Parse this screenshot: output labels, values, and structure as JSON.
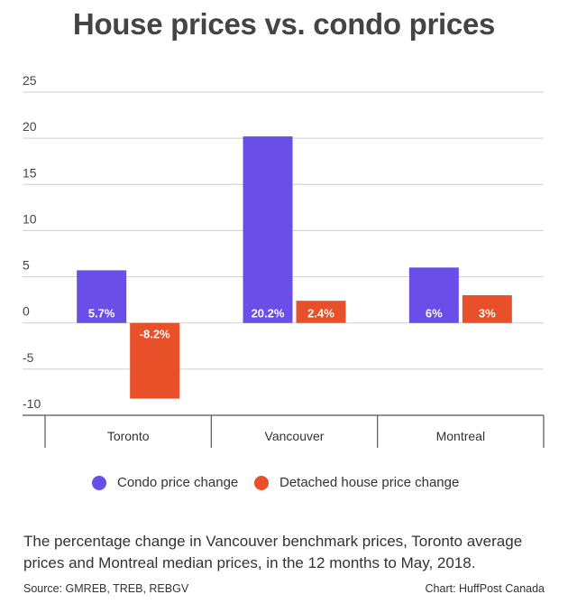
{
  "chart_data": {
    "type": "bar",
    "title": "House prices vs. condo prices",
    "categories": [
      "Toronto",
      "Vancouver",
      "Montreal"
    ],
    "series": [
      {
        "name": "Condo price change",
        "color": "#6a4ee8",
        "values": [
          5.7,
          20.2,
          6
        ],
        "labels": [
          "5.7%",
          "20.2%",
          "6%"
        ]
      },
      {
        "name": "Detached house price change",
        "color": "#e8502a",
        "values": [
          -8.2,
          2.4,
          3
        ],
        "labels": [
          "-8.2%",
          "2.4%",
          "3%"
        ]
      }
    ],
    "yticks": [
      "25",
      "20",
      "15",
      "10",
      "5",
      "0",
      "-5",
      "-10"
    ],
    "ylim": [
      -10,
      25
    ],
    "grid": true,
    "legend": "bottom"
  },
  "caption": "The percentage change in Vancouver benchmark prices, Toronto average prices and Montreal median prices, in the 12 months to May, 2018.",
  "source": "Source: GMREB, TREB, REBGV",
  "credit": "Chart: HuffPost Canada"
}
